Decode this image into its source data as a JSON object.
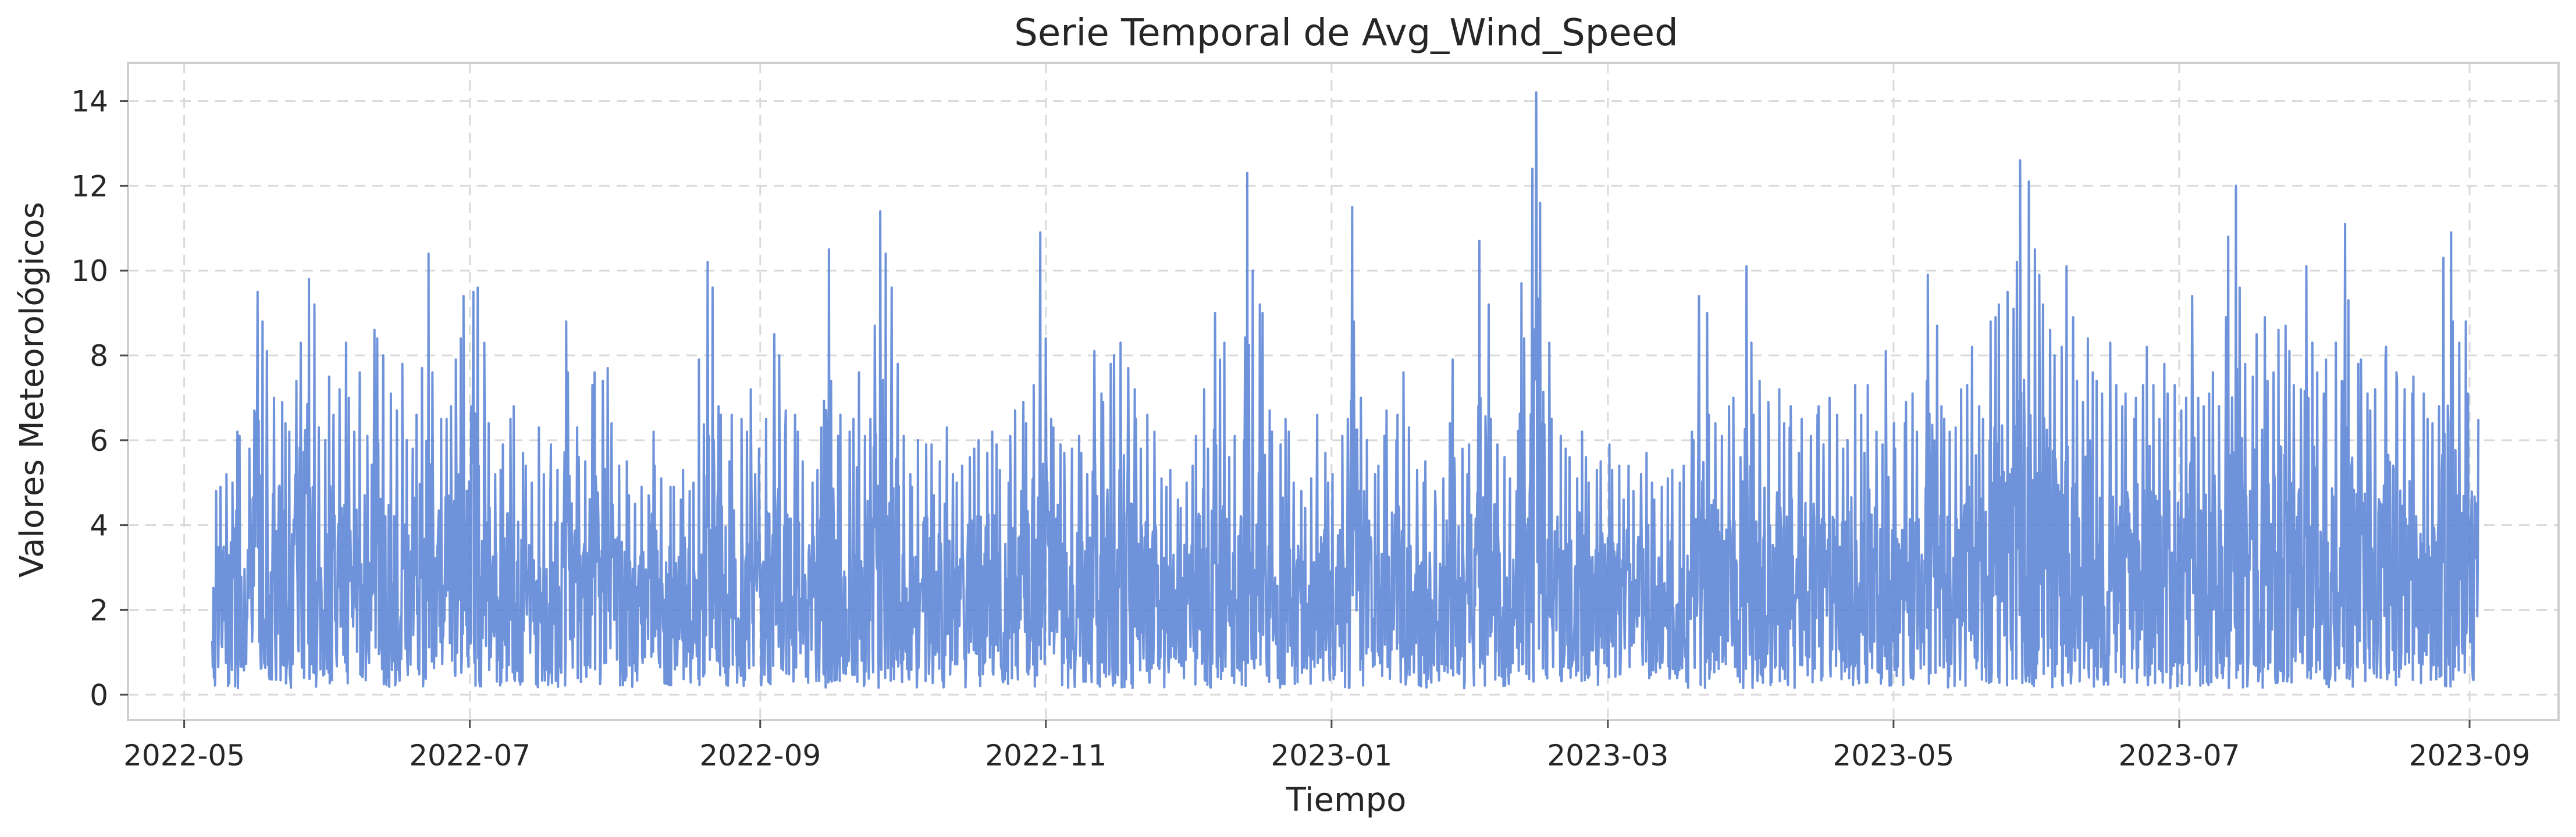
{
  "chart_data": {
    "type": "line",
    "title": "Serie Temporal de Avg_Wind_Speed",
    "xlabel": "Tiempo",
    "ylabel": "Valores Meteorológicos",
    "x_range": [
      "2022-04-19",
      "2023-09-20"
    ],
    "ylim": [
      -0.6,
      14.9
    ],
    "grid": true,
    "x_ticks": [
      "2022-05-01",
      "2022-07-01",
      "2022-09-01",
      "2022-11-01",
      "2023-01-01",
      "2023-03-01",
      "2023-05-01",
      "2023-07-01",
      "2023-09-01"
    ],
    "x_tick_labels": [
      "2022-05",
      "2022-07",
      "2022-09",
      "2022-11",
      "2023-01",
      "2023-03",
      "2023-05",
      "2023-07",
      "2023-09"
    ],
    "y_ticks": [
      0,
      2,
      4,
      6,
      8,
      10,
      12,
      14
    ],
    "y_tick_labels": [
      "0",
      "2",
      "4",
      "6",
      "8",
      "10",
      "12",
      "14"
    ],
    "series": [
      {
        "color": "#5b84d6",
        "x_start": "2022-05-07",
        "x_end": "2023-09-03",
        "approx_daily_max": [
          4.8,
          4.9,
          5.2,
          5.0,
          6.2,
          6.1,
          5.8,
          6.7,
          9.5,
          8.8,
          8.1,
          7.0,
          6.9,
          6.4,
          6.2,
          7.4,
          8.3,
          9.8,
          9.2,
          6.3,
          6.0,
          7.5,
          6.6,
          7.2,
          8.3,
          7.0,
          6.2,
          7.6,
          6.1,
          8.6,
          8.4,
          8.0,
          7.1,
          6.7,
          7.8,
          6.0,
          5.8,
          6.6,
          7.7,
          10.4,
          7.6,
          6.5,
          6.5,
          6.8,
          7.9,
          8.4,
          9.4,
          9.5,
          9.6,
          8.3,
          6.4,
          5.2,
          5.3,
          5.9,
          6.5,
          6.8,
          5.7,
          5.4,
          5.0,
          6.3,
          5.2,
          4.8,
          5.9,
          5.3,
          8.8,
          7.6,
          6.3,
          5.6,
          5.5,
          7.3,
          7.6,
          7.4,
          7.7,
          6.4,
          5.4,
          5.5,
          4.7,
          4.5,
          4.9,
          4.7,
          6.2,
          5.4,
          5.1,
          4.9,
          4.9,
          4.6,
          5.3,
          4.8,
          5.0,
          7.9,
          10.2,
          9.6,
          6.8,
          6.6,
          5.5,
          6.6,
          6.5,
          6.2,
          7.2,
          5.2,
          5.8,
          6.5,
          8.5,
          8.0,
          6.2,
          6.7,
          6.6,
          6.2,
          5.5,
          5.0,
          5.3,
          6.3,
          10.5,
          7.4,
          6.1,
          6.6,
          6.2,
          6.5,
          7.6,
          6.1,
          6.5,
          8.7,
          11.4,
          10.4,
          9.6,
          7.8,
          6.1,
          5.2,
          4.9,
          6.0,
          5.9,
          5.9,
          4.7,
          5.5,
          6.3,
          5.2,
          5.0,
          5.4,
          5.6,
          5.8,
          6.0,
          5.7,
          6.2,
          5.9,
          5.3,
          5.0,
          6.1,
          6.7,
          6.9,
          6.4,
          7.3,
          10.9,
          8.4,
          6.5,
          6.3,
          5.9,
          5.7,
          5.8,
          6.1,
          5.7,
          5.2,
          8.1,
          7.1,
          6.9,
          7.8,
          8.0,
          8.3,
          7.7,
          7.2,
          6.5,
          5.8,
          6.6,
          6.2,
          5.1,
          4.9,
          5.3,
          4.6,
          4.4,
          5.0,
          5.4,
          6.1,
          7.2,
          5.8,
          9.0,
          7.9,
          8.3,
          5.6,
          6.1,
          6.0,
          12.3,
          10.0,
          9.2,
          9.0,
          6.7,
          6.2,
          5.9,
          6.5,
          6.2,
          5.0,
          4.8,
          4.4,
          5.1,
          6.6,
          5.7,
          5.0,
          5.2,
          6.1,
          6.5,
          11.5,
          8.8,
          7.0,
          6.0,
          5.2,
          5.4,
          6.1,
          6.7,
          6.0,
          6.6,
          7.6,
          6.3,
          5.3,
          5.0,
          5.5,
          4.8,
          4.3,
          5.1,
          6.4,
          7.9,
          5.8,
          5.2,
          5.9,
          6.8,
          10.7,
          9.2,
          6.5,
          5.9,
          5.6,
          5.1,
          4.8,
          9.7,
          8.4,
          12.4,
          14.2,
          11.6,
          8.3,
          6.5,
          6.1,
          5.8,
          5.6,
          5.1,
          6.2,
          5.6,
          5.0,
          5.3,
          5.5,
          5.9,
          5.3,
          5.4,
          4.6,
          5.4,
          4.8,
          5.2,
          5.7,
          5.0,
          4.6,
          4.9,
          5.1,
          5.3,
          5.0,
          5.4,
          6.2,
          6.0,
          9.4,
          9.0,
          6.6,
          6.4,
          6.1,
          6.8,
          7.0,
          5.6,
          10.1,
          8.3,
          6.6,
          7.4,
          6.9,
          5.9,
          7.2,
          6.4,
          6.3,
          6.8,
          5.7,
          6.5,
          6.1,
          6.6,
          6.8,
          5.9,
          7.0,
          6.6,
          5.8,
          6.0,
          7.3,
          6.6,
          5.7,
          7.3,
          6.2,
          5.9,
          8.1,
          6.4,
          5.8,
          6.4,
          6.9,
          7.1,
          6.2,
          7.4,
          9.9,
          8.7,
          6.8,
          6.5,
          6.2,
          6.3,
          7.2,
          7.3,
          8.2,
          6.8,
          6.5,
          8.8,
          8.9,
          9.2,
          9.5,
          9.1,
          10.2,
          12.6,
          12.1,
          10.5,
          9.9,
          9.2,
          8.6,
          8.0,
          8.2,
          10.1,
          8.9,
          7.4,
          6.9,
          8.4,
          7.6,
          7.4,
          7.1,
          8.3,
          7.3,
          6.8,
          7.1,
          6.5,
          7.0,
          7.3,
          8.2,
          7.3,
          6.5,
          7.8,
          7.1,
          7.3,
          6.7,
          7.0,
          9.4,
          7.0,
          6.8,
          7.1,
          7.6,
          6.8,
          8.9,
          10.8,
          12.0,
          9.6,
          7.8,
          7.5,
          8.5,
          8.9,
          7.4,
          7.6,
          8.6,
          8.7,
          8.1,
          7.3,
          7.2,
          10.1,
          8.3,
          7.6,
          7.1,
          7.9,
          8.3,
          7.4,
          11.1,
          9.3,
          7.8,
          7.9,
          7.1,
          6.7,
          7.2,
          7.9,
          8.2,
          7.6,
          7.4,
          7.2,
          7.1,
          7.5,
          7.1,
          6.5,
          6.4,
          6.8,
          10.3,
          10.9,
          8.8,
          8.3,
          8.8,
          7.1,
          6.5
        ]
      }
    ]
  }
}
